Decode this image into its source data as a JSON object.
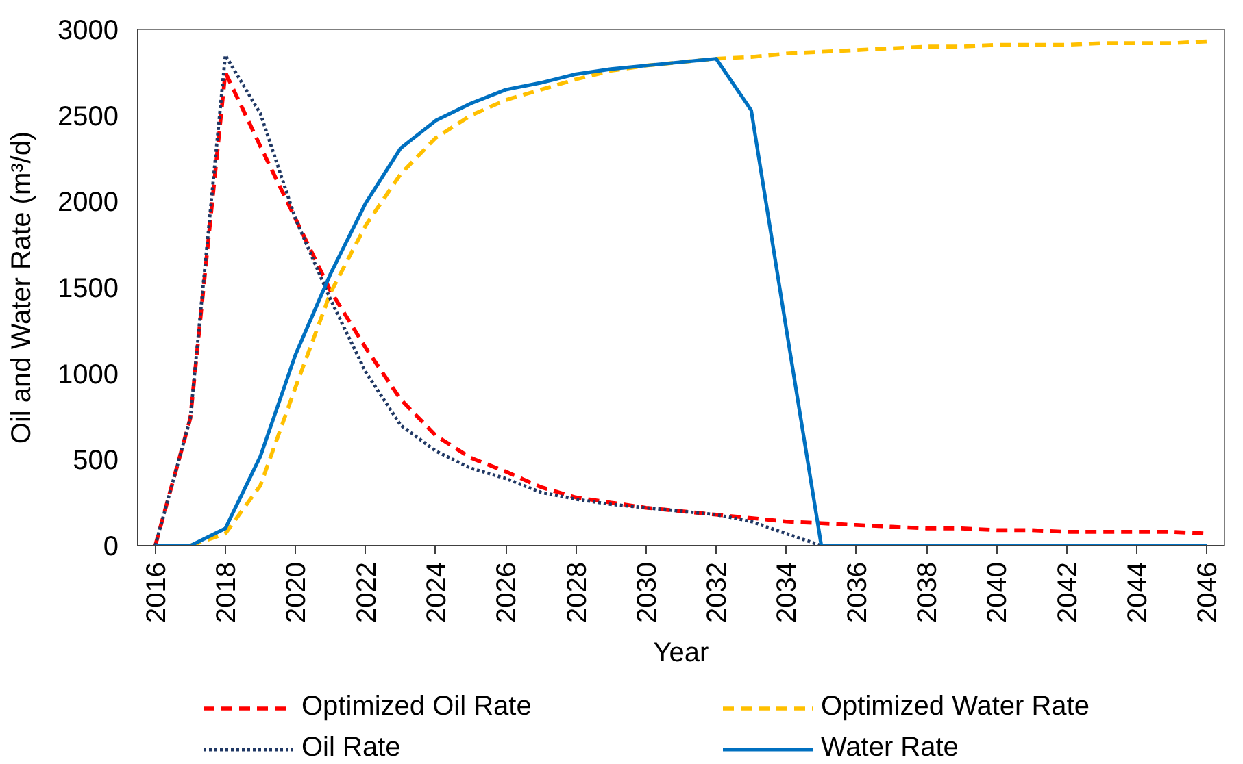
{
  "chart_data": {
    "type": "line",
    "xlabel": "Year",
    "ylabel": "Oil and Water Rate (m³/d)",
    "x": [
      2016,
      2017,
      2018,
      2019,
      2020,
      2021,
      2022,
      2023,
      2024,
      2025,
      2026,
      2027,
      2028,
      2029,
      2030,
      2031,
      2032,
      2033,
      2034,
      2035,
      2036,
      2037,
      2038,
      2039,
      2040,
      2041,
      2042,
      2043,
      2044,
      2045,
      2046
    ],
    "xlim": [
      2015.5,
      2046.5
    ],
    "xticks": [
      2016,
      2018,
      2020,
      2022,
      2024,
      2026,
      2028,
      2030,
      2032,
      2034,
      2036,
      2038,
      2040,
      2042,
      2044,
      2046
    ],
    "ylim": [
      0,
      3000
    ],
    "yticks": [
      0,
      500,
      1000,
      1500,
      2000,
      2500,
      3000
    ],
    "legend": "bottom",
    "series": [
      {
        "name": "Optimized Oil Rate",
        "color": "#ff0000",
        "line_style": "dashed",
        "values": [
          0,
          740,
          2750,
          2320,
          1900,
          1480,
          1150,
          850,
          640,
          510,
          430,
          340,
          280,
          250,
          220,
          200,
          180,
          160,
          140,
          130,
          120,
          110,
          100,
          100,
          90,
          90,
          80,
          80,
          80,
          80,
          70
        ]
      },
      {
        "name": "Optimized Water Rate",
        "color": "#ffc000",
        "line_style": "dashed",
        "values": [
          0,
          0,
          70,
          350,
          920,
          1470,
          1860,
          2160,
          2370,
          2500,
          2590,
          2650,
          2710,
          2760,
          2790,
          2810,
          2830,
          2840,
          2860,
          2870,
          2880,
          2890,
          2900,
          2900,
          2910,
          2910,
          2910,
          2920,
          2920,
          2920,
          2930
        ]
      },
      {
        "name": "Oil Rate",
        "color": "#203864",
        "line_style": "dotted",
        "values": [
          0,
          740,
          2850,
          2510,
          1900,
          1430,
          1010,
          700,
          550,
          450,
          390,
          310,
          270,
          240,
          220,
          200,
          180,
          140,
          70,
          0,
          null,
          null,
          null,
          null,
          null,
          null,
          null,
          null,
          null,
          null,
          null
        ]
      },
      {
        "name": "Water Rate",
        "color": "#0070c0",
        "line_style": "solid",
        "values": [
          0,
          0,
          100,
          520,
          1110,
          1580,
          1990,
          2310,
          2470,
          2570,
          2650,
          2690,
          2740,
          2770,
          2790,
          2810,
          2830,
          2530,
          1260,
          0,
          0,
          0,
          0,
          0,
          0,
          0,
          0,
          0,
          0,
          0,
          0
        ]
      }
    ]
  }
}
